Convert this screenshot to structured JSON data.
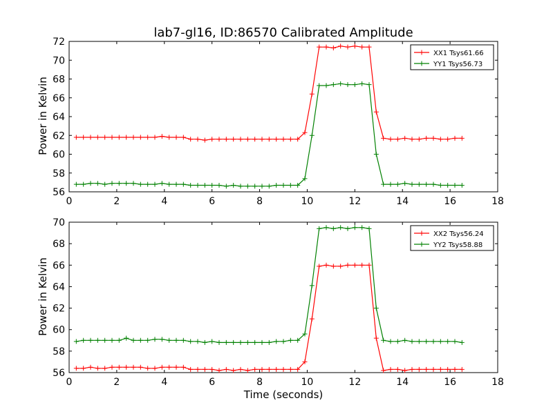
{
  "chart_data": [
    {
      "type": "line",
      "title": "lab7-gl16, ID:86570 Calibrated Amplitude",
      "xlabel": "",
      "ylabel": "Power in Kelvin",
      "xlim": [
        0,
        18
      ],
      "ylim": [
        56,
        72
      ],
      "xticks": [
        "0",
        "2",
        "4",
        "6",
        "8",
        "10",
        "12",
        "14",
        "16",
        "18"
      ],
      "yticks": [
        "56",
        "58",
        "60",
        "62",
        "64",
        "66",
        "68",
        "70",
        "72"
      ],
      "legend_position": "top-right",
      "series": [
        {
          "name": "XX1 Tsys61.66",
          "color": "#ff0000",
          "x": [
            0.3,
            0.6,
            0.9,
            1.2,
            1.5,
            1.8,
            2.1,
            2.4,
            2.7,
            3.0,
            3.3,
            3.6,
            3.9,
            4.2,
            4.5,
            4.8,
            5.1,
            5.4,
            5.7,
            6.0,
            6.3,
            6.6,
            6.9,
            7.2,
            7.5,
            7.8,
            8.1,
            8.4,
            8.7,
            9.0,
            9.3,
            9.6,
            9.9,
            10.2,
            10.5,
            10.8,
            11.1,
            11.4,
            11.7,
            12.0,
            12.3,
            12.6,
            12.9,
            13.2,
            13.5,
            13.8,
            14.1,
            14.4,
            14.7,
            15.0,
            15.3,
            15.6,
            15.9,
            16.2,
            16.5
          ],
          "y": [
            61.8,
            61.8,
            61.8,
            61.8,
            61.8,
            61.8,
            61.8,
            61.8,
            61.8,
            61.8,
            61.8,
            61.8,
            61.9,
            61.8,
            61.8,
            61.8,
            61.6,
            61.6,
            61.5,
            61.6,
            61.6,
            61.6,
            61.6,
            61.6,
            61.6,
            61.6,
            61.6,
            61.6,
            61.6,
            61.6,
            61.6,
            61.6,
            62.3,
            66.4,
            71.4,
            71.4,
            71.3,
            71.5,
            71.4,
            71.5,
            71.4,
            71.4,
            64.5,
            61.7,
            61.6,
            61.6,
            61.7,
            61.6,
            61.6,
            61.7,
            61.7,
            61.6,
            61.6,
            61.7,
            61.7
          ]
        },
        {
          "name": "YY1 Tsys56.73",
          "color": "#008000",
          "x": [
            0.3,
            0.6,
            0.9,
            1.2,
            1.5,
            1.8,
            2.1,
            2.4,
            2.7,
            3.0,
            3.3,
            3.6,
            3.9,
            4.2,
            4.5,
            4.8,
            5.1,
            5.4,
            5.7,
            6.0,
            6.3,
            6.6,
            6.9,
            7.2,
            7.5,
            7.8,
            8.1,
            8.4,
            8.7,
            9.0,
            9.3,
            9.6,
            9.9,
            10.2,
            10.5,
            10.8,
            11.1,
            11.4,
            11.7,
            12.0,
            12.3,
            12.6,
            12.9,
            13.2,
            13.5,
            13.8,
            14.1,
            14.4,
            14.7,
            15.0,
            15.3,
            15.6,
            15.9,
            16.2,
            16.5
          ],
          "y": [
            56.8,
            56.8,
            56.9,
            56.9,
            56.8,
            56.9,
            56.9,
            56.9,
            56.9,
            56.8,
            56.8,
            56.8,
            56.9,
            56.8,
            56.8,
            56.8,
            56.7,
            56.7,
            56.7,
            56.7,
            56.7,
            56.6,
            56.7,
            56.6,
            56.6,
            56.6,
            56.6,
            56.6,
            56.7,
            56.7,
            56.7,
            56.7,
            57.4,
            62.0,
            67.3,
            67.3,
            67.4,
            67.5,
            67.4,
            67.4,
            67.5,
            67.4,
            60.0,
            56.8,
            56.8,
            56.8,
            56.9,
            56.8,
            56.8,
            56.8,
            56.8,
            56.7,
            56.7,
            56.7,
            56.7
          ]
        }
      ]
    },
    {
      "type": "line",
      "title": "",
      "xlabel": "Time (seconds)",
      "ylabel": "Power in Kelvin",
      "xlim": [
        0,
        18
      ],
      "ylim": [
        56,
        70
      ],
      "xticks": [
        "0",
        "2",
        "4",
        "6",
        "8",
        "10",
        "12",
        "14",
        "16",
        "18"
      ],
      "yticks": [
        "56",
        "58",
        "60",
        "62",
        "64",
        "66",
        "68",
        "70"
      ],
      "legend_position": "top-right",
      "series": [
        {
          "name": "XX2 Tsys56.24",
          "color": "#ff0000",
          "x": [
            0.3,
            0.6,
            0.9,
            1.2,
            1.5,
            1.8,
            2.1,
            2.4,
            2.7,
            3.0,
            3.3,
            3.6,
            3.9,
            4.2,
            4.5,
            4.8,
            5.1,
            5.4,
            5.7,
            6.0,
            6.3,
            6.6,
            6.9,
            7.2,
            7.5,
            7.8,
            8.1,
            8.4,
            8.7,
            9.0,
            9.3,
            9.6,
            9.9,
            10.2,
            10.5,
            10.8,
            11.1,
            11.4,
            11.7,
            12.0,
            12.3,
            12.6,
            12.9,
            13.2,
            13.5,
            13.8,
            14.1,
            14.4,
            14.7,
            15.0,
            15.3,
            15.6,
            15.9,
            16.2,
            16.5
          ],
          "y": [
            56.4,
            56.4,
            56.5,
            56.4,
            56.4,
            56.5,
            56.5,
            56.5,
            56.5,
            56.5,
            56.4,
            56.4,
            56.5,
            56.5,
            56.5,
            56.5,
            56.3,
            56.3,
            56.3,
            56.3,
            56.2,
            56.3,
            56.2,
            56.3,
            56.2,
            56.3,
            56.3,
            56.3,
            56.3,
            56.3,
            56.3,
            56.3,
            57.0,
            61.0,
            65.9,
            66.0,
            65.9,
            65.9,
            66.0,
            66.0,
            66.0,
            66.0,
            59.2,
            56.2,
            56.3,
            56.3,
            56.2,
            56.3,
            56.3,
            56.3,
            56.3,
            56.3,
            56.3,
            56.3,
            56.3
          ]
        },
        {
          "name": "YY2 Tsys58.88",
          "color": "#008000",
          "x": [
            0.3,
            0.6,
            0.9,
            1.2,
            1.5,
            1.8,
            2.1,
            2.4,
            2.7,
            3.0,
            3.3,
            3.6,
            3.9,
            4.2,
            4.5,
            4.8,
            5.1,
            5.4,
            5.7,
            6.0,
            6.3,
            6.6,
            6.9,
            7.2,
            7.5,
            7.8,
            8.1,
            8.4,
            8.7,
            9.0,
            9.3,
            9.6,
            9.9,
            10.2,
            10.5,
            10.8,
            11.1,
            11.4,
            11.7,
            12.0,
            12.3,
            12.6,
            12.9,
            13.2,
            13.5,
            13.8,
            14.1,
            14.4,
            14.7,
            15.0,
            15.3,
            15.6,
            15.9,
            16.2,
            16.5
          ],
          "y": [
            58.9,
            59.0,
            59.0,
            59.0,
            59.0,
            59.0,
            59.0,
            59.2,
            59.0,
            59.0,
            59.0,
            59.1,
            59.1,
            59.0,
            59.0,
            59.0,
            58.9,
            58.9,
            58.8,
            58.9,
            58.8,
            58.8,
            58.8,
            58.8,
            58.8,
            58.8,
            58.8,
            58.8,
            58.9,
            58.9,
            59.0,
            59.0,
            59.6,
            64.1,
            69.4,
            69.5,
            69.4,
            69.5,
            69.4,
            69.5,
            69.5,
            69.4,
            62.0,
            59.0,
            58.9,
            58.9,
            59.0,
            58.9,
            58.9,
            58.9,
            58.9,
            58.9,
            58.9,
            58.9,
            58.8
          ]
        }
      ]
    }
  ]
}
